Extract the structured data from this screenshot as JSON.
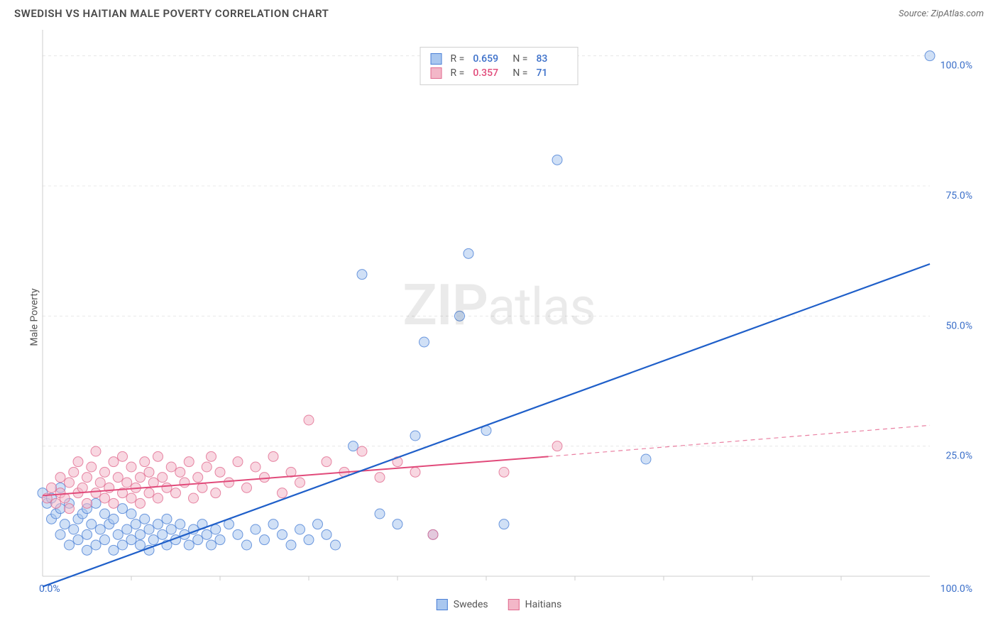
{
  "header": {
    "title": "SWEDISH VS HAITIAN MALE POVERTY CORRELATION CHART",
    "source_prefix": "Source: ",
    "source_name": "ZipAtlas.com"
  },
  "chart": {
    "type": "scatter",
    "ylabel": "Male Poverty",
    "xlim": [
      0,
      100
    ],
    "ylim": [
      0,
      105
    ],
    "yticks": [
      25,
      50,
      75,
      100
    ],
    "ytick_labels": [
      "25.0%",
      "50.0%",
      "75.0%",
      "100.0%"
    ],
    "x_start_label": "0.0%",
    "x_end_label": "100.0%",
    "x_minor_ticks": [
      10,
      20,
      30,
      40,
      50,
      60,
      70,
      80,
      90
    ],
    "grid_color": "#e8e8e8",
    "grid_dash": "4,4",
    "axis_color": "#cccccc",
    "plot_bg": "#ffffff",
    "marker_radius": 7,
    "marker_opacity": 0.55,
    "watermark_zip": "ZIP",
    "watermark_atlas": "atlas"
  },
  "series": [
    {
      "name": "Swedes",
      "color_fill": "#a9c7ef",
      "color_stroke": "#4a7fd6",
      "r_value": "0.659",
      "n_value": "83",
      "trend": {
        "x1": 0,
        "y1": -2,
        "x2": 100,
        "y2": 60,
        "color": "#1f5fc9",
        "width": 2.2
      },
      "points": [
        [
          0,
          16
        ],
        [
          0.5,
          14
        ],
        [
          1,
          15
        ],
        [
          1,
          11
        ],
        [
          1.5,
          12
        ],
        [
          2,
          8
        ],
        [
          2,
          13
        ],
        [
          2,
          17
        ],
        [
          2.5,
          10
        ],
        [
          3,
          6
        ],
        [
          3,
          14
        ],
        [
          3.5,
          9
        ],
        [
          4,
          11
        ],
        [
          4,
          7
        ],
        [
          4.5,
          12
        ],
        [
          5,
          8
        ],
        [
          5,
          5
        ],
        [
          5,
          13
        ],
        [
          5.5,
          10
        ],
        [
          6,
          6
        ],
        [
          6,
          14
        ],
        [
          6.5,
          9
        ],
        [
          7,
          7
        ],
        [
          7,
          12
        ],
        [
          7.5,
          10
        ],
        [
          8,
          5
        ],
        [
          8,
          11
        ],
        [
          8.5,
          8
        ],
        [
          9,
          6
        ],
        [
          9,
          13
        ],
        [
          9.5,
          9
        ],
        [
          10,
          7
        ],
        [
          10,
          12
        ],
        [
          10.5,
          10
        ],
        [
          11,
          6
        ],
        [
          11,
          8
        ],
        [
          11.5,
          11
        ],
        [
          12,
          5
        ],
        [
          12,
          9
        ],
        [
          12.5,
          7
        ],
        [
          13,
          10
        ],
        [
          13.5,
          8
        ],
        [
          14,
          6
        ],
        [
          14,
          11
        ],
        [
          14.5,
          9
        ],
        [
          15,
          7
        ],
        [
          15.5,
          10
        ],
        [
          16,
          8
        ],
        [
          16.5,
          6
        ],
        [
          17,
          9
        ],
        [
          17.5,
          7
        ],
        [
          18,
          10
        ],
        [
          18.5,
          8
        ],
        [
          19,
          6
        ],
        [
          19.5,
          9
        ],
        [
          20,
          7
        ],
        [
          21,
          10
        ],
        [
          22,
          8
        ],
        [
          23,
          6
        ],
        [
          24,
          9
        ],
        [
          25,
          7
        ],
        [
          26,
          10
        ],
        [
          27,
          8
        ],
        [
          28,
          6
        ],
        [
          29,
          9
        ],
        [
          30,
          7
        ],
        [
          31,
          10
        ],
        [
          32,
          8
        ],
        [
          33,
          6
        ],
        [
          35,
          25
        ],
        [
          36,
          58
        ],
        [
          38,
          12
        ],
        [
          40,
          10
        ],
        [
          42,
          27
        ],
        [
          43,
          45
        ],
        [
          44,
          8
        ],
        [
          47,
          50
        ],
        [
          48,
          62
        ],
        [
          50,
          28
        ],
        [
          52,
          10
        ],
        [
          58,
          80
        ],
        [
          68,
          22.5
        ],
        [
          100,
          100
        ]
      ]
    },
    {
      "name": "Haitians",
      "color_fill": "#f3b7c8",
      "color_stroke": "#e16a8f",
      "r_value": "0.357",
      "n_value": "71",
      "trend": {
        "x1": 0,
        "y1": 15.5,
        "x2": 57,
        "y2": 23,
        "dash_x2": 100,
        "dash_y2": 29,
        "color": "#e14a7a",
        "width": 2
      },
      "points": [
        [
          0.5,
          15
        ],
        [
          1,
          17
        ],
        [
          1.5,
          14
        ],
        [
          2,
          16
        ],
        [
          2,
          19
        ],
        [
          2.5,
          15
        ],
        [
          3,
          18
        ],
        [
          3,
          13
        ],
        [
          3.5,
          20
        ],
        [
          4,
          16
        ],
        [
          4,
          22
        ],
        [
          4.5,
          17
        ],
        [
          5,
          14
        ],
        [
          5,
          19
        ],
        [
          5.5,
          21
        ],
        [
          6,
          16
        ],
        [
          6,
          24
        ],
        [
          6.5,
          18
        ],
        [
          7,
          15
        ],
        [
          7,
          20
        ],
        [
          7.5,
          17
        ],
        [
          8,
          22
        ],
        [
          8,
          14
        ],
        [
          8.5,
          19
        ],
        [
          9,
          16
        ],
        [
          9,
          23
        ],
        [
          9.5,
          18
        ],
        [
          10,
          15
        ],
        [
          10,
          21
        ],
        [
          10.5,
          17
        ],
        [
          11,
          19
        ],
        [
          11,
          14
        ],
        [
          11.5,
          22
        ],
        [
          12,
          16
        ],
        [
          12,
          20
        ],
        [
          12.5,
          18
        ],
        [
          13,
          23
        ],
        [
          13,
          15
        ],
        [
          13.5,
          19
        ],
        [
          14,
          17
        ],
        [
          14.5,
          21
        ],
        [
          15,
          16
        ],
        [
          15.5,
          20
        ],
        [
          16,
          18
        ],
        [
          16.5,
          22
        ],
        [
          17,
          15
        ],
        [
          17.5,
          19
        ],
        [
          18,
          17
        ],
        [
          18.5,
          21
        ],
        [
          19,
          23
        ],
        [
          19.5,
          16
        ],
        [
          20,
          20
        ],
        [
          21,
          18
        ],
        [
          22,
          22
        ],
        [
          23,
          17
        ],
        [
          24,
          21
        ],
        [
          25,
          19
        ],
        [
          26,
          23
        ],
        [
          27,
          16
        ],
        [
          28,
          20
        ],
        [
          29,
          18
        ],
        [
          30,
          30
        ],
        [
          32,
          22
        ],
        [
          34,
          20
        ],
        [
          36,
          24
        ],
        [
          38,
          19
        ],
        [
          40,
          22
        ],
        [
          42,
          20
        ],
        [
          44,
          8
        ],
        [
          52,
          20
        ],
        [
          58,
          25
        ]
      ]
    }
  ],
  "legend_top": {
    "r_label": "R =",
    "n_label": "N ="
  },
  "legend_bottom": {
    "series1_label": "Swedes",
    "series2_label": "Haitians"
  },
  "colors": {
    "title": "#4a4a4a",
    "source": "#6b6b6b",
    "blue_text": "#3b6fc9",
    "pink_text": "#e14a7a"
  }
}
